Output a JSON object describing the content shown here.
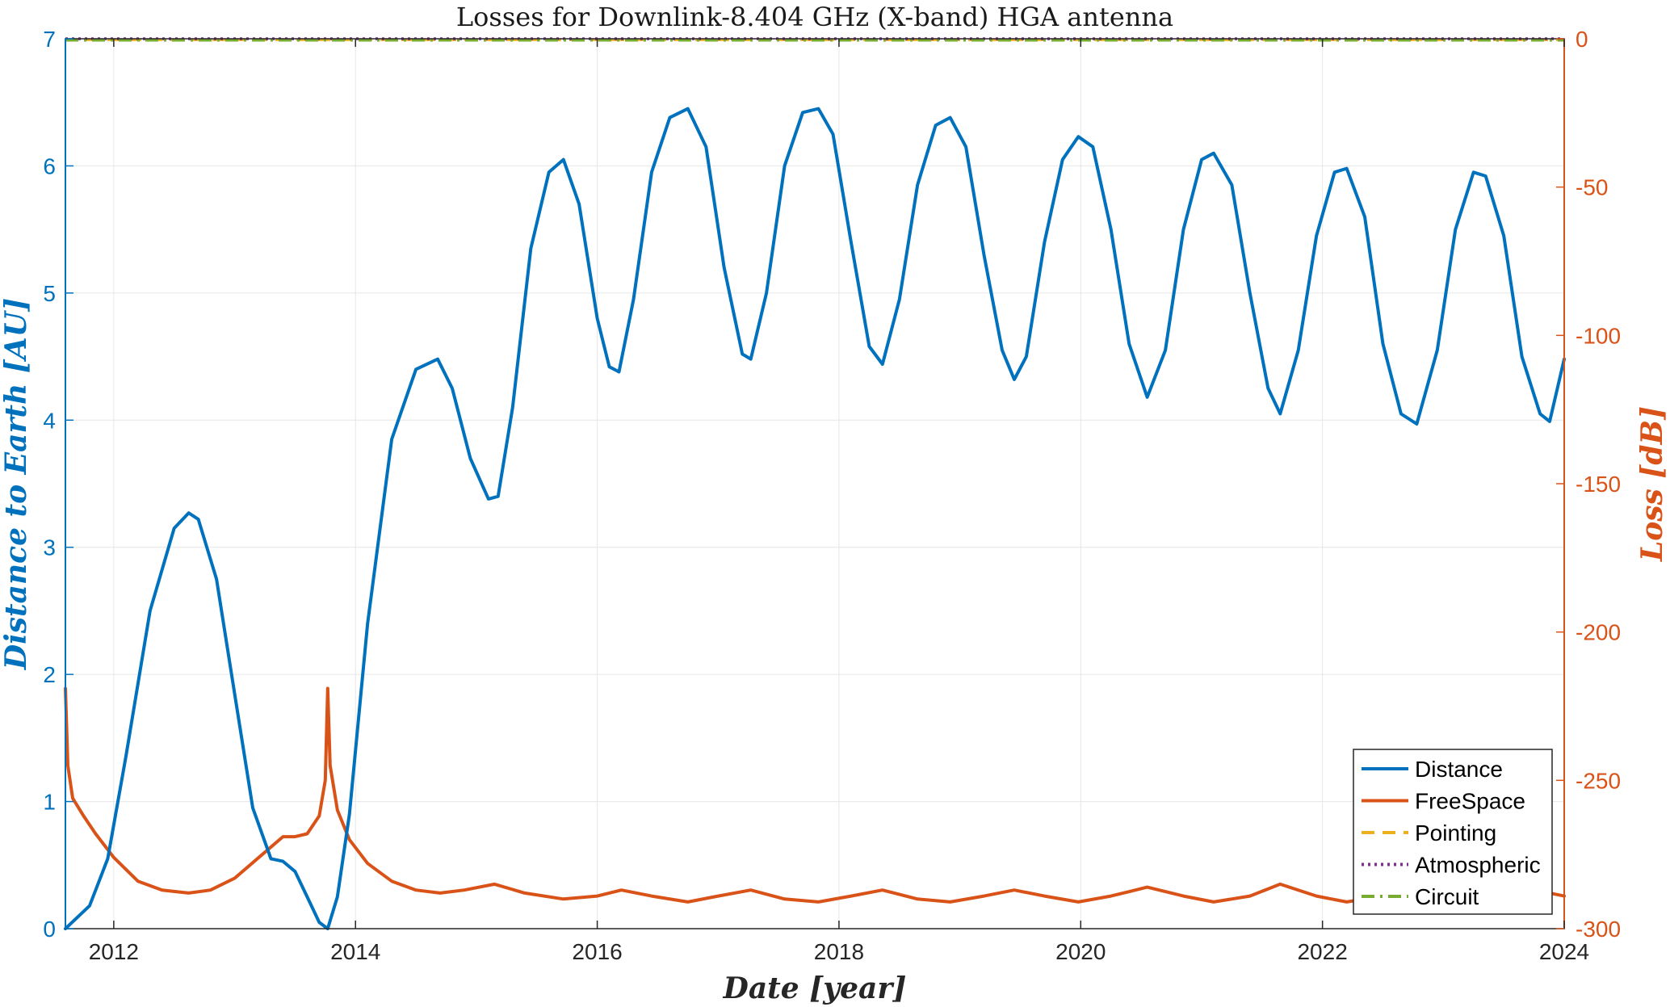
{
  "chart_data": {
    "type": "line",
    "title": "Losses for Downlink-8.404 GHz (X-band) HGA antenna",
    "xlabel": "Date [year]",
    "ylabel_left": "Distance to Earth [AU]",
    "ylabel_right": "Loss [dB]",
    "xlim": [
      2011.6,
      2024.0
    ],
    "ylim_left": [
      0,
      7
    ],
    "ylim_right": [
      -300,
      0
    ],
    "x_ticks": [
      "2012",
      "2014",
      "2016",
      "2018",
      "2020",
      "2022",
      "2024"
    ],
    "y_left_ticks": [
      "0",
      "1",
      "2",
      "3",
      "4",
      "5",
      "6",
      "7"
    ],
    "y_right_ticks": [
      "0",
      "-50",
      "-100",
      "-150",
      "-200",
      "-250",
      "-300"
    ],
    "grid": true,
    "legend_position": "bottom-right",
    "series": [
      {
        "name": "Distance",
        "axis": "left",
        "color": "#0072BD",
        "style": "solid",
        "x": [
          2011.6,
          2011.8,
          2011.95,
          2012.1,
          2012.3,
          2012.5,
          2012.62,
          2012.7,
          2012.85,
          2013.0,
          2013.15,
          2013.3,
          2013.4,
          2013.5,
          2013.6,
          2013.7,
          2013.77,
          2013.85,
          2013.95,
          2014.1,
          2014.3,
          2014.5,
          2014.68,
          2014.8,
          2014.95,
          2015.1,
          2015.18,
          2015.3,
          2015.45,
          2015.6,
          2015.72,
          2015.85,
          2016.0,
          2016.1,
          2016.18,
          2016.3,
          2016.45,
          2016.6,
          2016.75,
          2016.9,
          2017.05,
          2017.2,
          2017.27,
          2017.4,
          2017.55,
          2017.7,
          2017.83,
          2017.95,
          2018.1,
          2018.25,
          2018.36,
          2018.5,
          2018.65,
          2018.8,
          2018.92,
          2019.05,
          2019.2,
          2019.35,
          2019.45,
          2019.55,
          2019.7,
          2019.85,
          2019.98,
          2020.1,
          2020.25,
          2020.4,
          2020.55,
          2020.7,
          2020.85,
          2021.0,
          2021.1,
          2021.25,
          2021.4,
          2021.55,
          2021.65,
          2021.8,
          2021.95,
          2022.1,
          2022.2,
          2022.35,
          2022.5,
          2022.65,
          2022.78,
          2022.95,
          2023.1,
          2023.25,
          2023.35,
          2023.5,
          2023.65,
          2023.8,
          2023.88,
          2024.0
        ],
        "values": [
          0.0,
          0.18,
          0.55,
          1.35,
          2.5,
          3.15,
          3.27,
          3.22,
          2.75,
          1.85,
          0.95,
          0.55,
          0.53,
          0.45,
          0.25,
          0.05,
          0.0,
          0.25,
          0.9,
          2.4,
          3.85,
          4.4,
          4.48,
          4.25,
          3.7,
          3.38,
          3.4,
          4.1,
          5.35,
          5.95,
          6.05,
          5.7,
          4.8,
          4.42,
          4.38,
          4.95,
          5.95,
          6.38,
          6.45,
          6.15,
          5.2,
          4.52,
          4.48,
          5.0,
          6.0,
          6.42,
          6.45,
          6.25,
          5.4,
          4.58,
          4.44,
          4.95,
          5.85,
          6.32,
          6.38,
          6.15,
          5.3,
          4.55,
          4.32,
          4.5,
          5.4,
          6.05,
          6.23,
          6.15,
          5.5,
          4.6,
          4.18,
          4.55,
          5.5,
          6.05,
          6.1,
          5.85,
          5.0,
          4.25,
          4.05,
          4.55,
          5.45,
          5.95,
          5.98,
          5.6,
          4.6,
          4.05,
          3.97,
          4.55,
          5.5,
          5.95,
          5.92,
          5.45,
          4.5,
          4.05,
          3.99,
          4.48
        ]
      },
      {
        "name": "FreeSpace",
        "axis": "right",
        "color": "#D95319",
        "style": "solid",
        "x": [
          2011.6,
          2011.62,
          2011.66,
          2011.75,
          2011.85,
          2012.0,
          2012.2,
          2012.4,
          2012.62,
          2012.8,
          2013.0,
          2013.2,
          2013.4,
          2013.5,
          2013.6,
          2013.7,
          2013.75,
          2013.77,
          2013.79,
          2013.85,
          2013.95,
          2014.1,
          2014.3,
          2014.5,
          2014.7,
          2014.9,
          2015.15,
          2015.4,
          2015.72,
          2016.0,
          2016.2,
          2016.45,
          2016.75,
          2017.0,
          2017.27,
          2017.55,
          2017.83,
          2018.1,
          2018.36,
          2018.65,
          2018.92,
          2019.2,
          2019.45,
          2019.7,
          2019.98,
          2020.25,
          2020.55,
          2020.85,
          2021.1,
          2021.4,
          2021.65,
          2021.95,
          2022.2,
          2022.5,
          2022.78,
          2023.1,
          2023.35,
          2023.65,
          2023.88,
          2024.0
        ],
        "values": [
          -219,
          -245,
          -256,
          -262,
          -268,
          -276,
          -284,
          -287,
          -288,
          -287,
          -283,
          -276,
          -269,
          -269,
          -268,
          -262,
          -250,
          -219,
          -245,
          -260,
          -270,
          -278,
          -284,
          -287,
          -288,
          -287,
          -285,
          -288,
          -290,
          -289,
          -287,
          -289,
          -291,
          -289,
          -287,
          -290,
          -291,
          -289,
          -287,
          -290,
          -291,
          -289,
          -287,
          -289,
          -291,
          -289,
          -286,
          -289,
          -291,
          -289,
          -285,
          -289,
          -291,
          -289,
          -291,
          -290,
          -289,
          -288,
          -288,
          -289
        ]
      },
      {
        "name": "Pointing",
        "axis": "right",
        "color": "#EDB120",
        "style": "dashed",
        "x": [
          2011.6,
          2024.0
        ],
        "values": [
          -0.3,
          -0.3
        ]
      },
      {
        "name": "Atmospheric",
        "axis": "right",
        "color": "#7E2F8E",
        "style": "dotted",
        "x": [
          2011.6,
          2024.0
        ],
        "values": [
          0,
          0
        ]
      },
      {
        "name": "Circuit",
        "axis": "right",
        "color": "#77AC30",
        "style": "dashdot",
        "x": [
          2011.6,
          2024.0
        ],
        "values": [
          -0.5,
          -0.5
        ]
      }
    ]
  }
}
